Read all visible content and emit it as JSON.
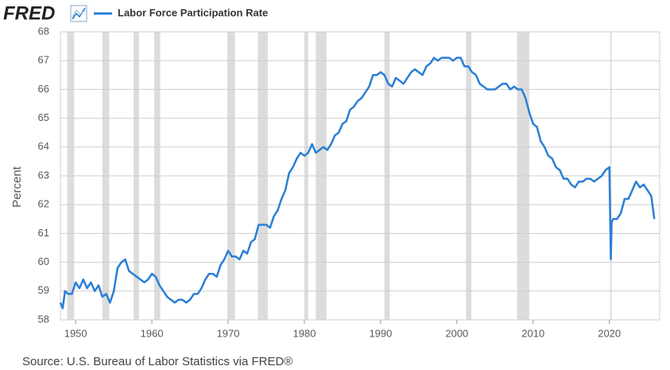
{
  "chart_data": {
    "type": "line",
    "logo": "FRED",
    "source": "Source: U.S. Bureau of Labor Statistics via FRED®",
    "ylabel": "Percent",
    "xlim": [
      1948,
      2026.6
    ],
    "ylim": [
      58,
      68
    ],
    "xticks": [
      1950,
      1960,
      1970,
      1980,
      1990,
      2000,
      2010,
      2020
    ],
    "yticks": [
      58,
      59,
      60,
      61,
      62,
      63,
      64,
      65,
      66,
      67,
      68
    ],
    "grid": true,
    "recessions": [
      [
        1948.9,
        1949.8
      ],
      [
        1953.5,
        1954.4
      ],
      [
        1957.6,
        1958.3
      ],
      [
        1960.3,
        1961.1
      ],
      [
        1969.9,
        1970.9
      ],
      [
        1973.9,
        1975.2
      ],
      [
        1980.0,
        1980.5
      ],
      [
        1981.5,
        1982.9
      ],
      [
        1990.5,
        1991.2
      ],
      [
        2001.2,
        2001.9
      ],
      [
        2007.9,
        2009.5
      ],
      [
        2020.1,
        2020.3
      ]
    ],
    "x": [
      1948,
      1948.3,
      1948.6,
      1949,
      1949.5,
      1950,
      1950.5,
      1951,
      1951.5,
      1952,
      1952.5,
      1953,
      1953.5,
      1954,
      1954.5,
      1955,
      1955.5,
      1956,
      1956.5,
      1957,
      1957.5,
      1958,
      1958.5,
      1959,
      1959.5,
      1960,
      1960.5,
      1961,
      1961.5,
      1962,
      1962.5,
      1963,
      1963.5,
      1964,
      1964.5,
      1965,
      1965.5,
      1966,
      1966.5,
      1967,
      1967.5,
      1968,
      1968.5,
      1969,
      1969.5,
      1970,
      1970.5,
      1971,
      1971.5,
      1972,
      1972.5,
      1973,
      1973.5,
      1974,
      1974.5,
      1975,
      1975.5,
      1976,
      1976.5,
      1977,
      1977.5,
      1978,
      1978.5,
      1979,
      1979.5,
      1980,
      1980.5,
      1981,
      1981.5,
      1982,
      1982.5,
      1983,
      1983.5,
      1984,
      1984.5,
      1985,
      1985.5,
      1986,
      1986.5,
      1987,
      1987.5,
      1988,
      1988.5,
      1989,
      1989.5,
      1990,
      1990.5,
      1991,
      1991.5,
      1992,
      1992.5,
      1993,
      1993.5,
      1994,
      1994.5,
      1995,
      1995.5,
      1996,
      1996.5,
      1997,
      1997.5,
      1998,
      1998.5,
      1999,
      1999.5,
      2000,
      2000.5,
      2001,
      2001.5,
      2002,
      2002.5,
      2003,
      2003.5,
      2004,
      2004.5,
      2005,
      2005.5,
      2006,
      2006.5,
      2007,
      2007.5,
      2008,
      2008.5,
      2009,
      2009.5,
      2010,
      2010.5,
      2011,
      2011.5,
      2012,
      2012.5,
      2013,
      2013.5,
      2014,
      2014.5,
      2015,
      2015.5,
      2016,
      2016.5,
      2017,
      2017.5,
      2018,
      2018.5,
      2019,
      2019.5,
      2020,
      2020.2,
      2020.3,
      2020.5,
      2021,
      2021.5,
      2022,
      2022.5,
      2023,
      2023.5,
      2024,
      2024.5,
      2025,
      2025.5,
      2025.9
    ],
    "series": [
      {
        "name": "Labor Force Participation Rate",
        "color": "#2a7fd6",
        "values": [
          58.6,
          58.4,
          59.0,
          58.9,
          58.9,
          59.3,
          59.1,
          59.4,
          59.1,
          59.3,
          59.0,
          59.2,
          58.8,
          58.9,
          58.6,
          59.0,
          59.8,
          60.0,
          60.1,
          59.7,
          59.6,
          59.5,
          59.4,
          59.3,
          59.4,
          59.6,
          59.5,
          59.2,
          59.0,
          58.8,
          58.7,
          58.6,
          58.7,
          58.7,
          58.6,
          58.7,
          58.9,
          58.9,
          59.1,
          59.4,
          59.6,
          59.6,
          59.5,
          59.9,
          60.1,
          60.4,
          60.2,
          60.2,
          60.1,
          60.4,
          60.3,
          60.7,
          60.8,
          61.3,
          61.3,
          61.3,
          61.2,
          61.6,
          61.8,
          62.2,
          62.5,
          63.1,
          63.3,
          63.6,
          63.8,
          63.7,
          63.8,
          64.1,
          63.8,
          63.9,
          64.0,
          63.9,
          64.1,
          64.4,
          64.5,
          64.8,
          64.9,
          65.3,
          65.4,
          65.6,
          65.7,
          65.9,
          66.1,
          66.5,
          66.5,
          66.6,
          66.5,
          66.2,
          66.1,
          66.4,
          66.3,
          66.2,
          66.4,
          66.6,
          66.7,
          66.6,
          66.5,
          66.8,
          66.9,
          67.1,
          67.0,
          67.1,
          67.1,
          67.1,
          67.0,
          67.1,
          67.1,
          66.8,
          66.8,
          66.6,
          66.5,
          66.2,
          66.1,
          66.0,
          66.0,
          66.0,
          66.1,
          66.2,
          66.2,
          66.0,
          66.1,
          66.0,
          66.0,
          65.7,
          65.2,
          64.8,
          64.7,
          64.2,
          64.0,
          63.7,
          63.6,
          63.3,
          63.2,
          62.9,
          62.9,
          62.7,
          62.6,
          62.8,
          62.8,
          62.9,
          62.9,
          62.8,
          62.9,
          63.0,
          63.2,
          63.3,
          60.1,
          61.4,
          61.5,
          61.5,
          61.7,
          62.2,
          62.2,
          62.5,
          62.8,
          62.6,
          62.7,
          62.5,
          62.3,
          61.5
        ]
      }
    ]
  }
}
